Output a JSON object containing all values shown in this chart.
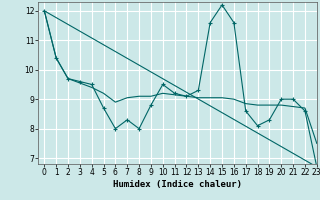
{
  "xlabel": "Humidex (Indice chaleur)",
  "bg_color": "#cce8e8",
  "grid_color": "#ffffff",
  "line_color": "#006666",
  "xlim": [
    -0.5,
    23
  ],
  "ylim": [
    6.8,
    12.3
  ],
  "yticks": [
    7,
    8,
    9,
    10,
    11,
    12
  ],
  "xticks": [
    0,
    1,
    2,
    3,
    4,
    5,
    6,
    7,
    8,
    9,
    10,
    11,
    12,
    13,
    14,
    15,
    16,
    17,
    18,
    19,
    20,
    21,
    22,
    23
  ],
  "series1_x": [
    0,
    1,
    2,
    3,
    4,
    5,
    6,
    7,
    8,
    9,
    10,
    11,
    12,
    13,
    14,
    15,
    16,
    17,
    18,
    19,
    20,
    21,
    22,
    23
  ],
  "series1_y": [
    12.0,
    10.4,
    9.7,
    9.6,
    9.5,
    8.7,
    8.0,
    8.3,
    8.0,
    8.8,
    9.5,
    9.2,
    9.1,
    9.3,
    11.6,
    12.2,
    11.6,
    8.6,
    8.1,
    8.3,
    9.0,
    9.0,
    8.6,
    6.7
  ],
  "series2_x": [
    0,
    1,
    2,
    3,
    4,
    5,
    6,
    7,
    8,
    9,
    10,
    11,
    12,
    13,
    14,
    15,
    16,
    17,
    18,
    19,
    20,
    21,
    22,
    23
  ],
  "series2_y": [
    12.0,
    10.4,
    9.7,
    9.55,
    9.4,
    9.2,
    8.9,
    9.05,
    9.1,
    9.1,
    9.2,
    9.15,
    9.1,
    9.05,
    9.05,
    9.05,
    9.0,
    8.85,
    8.8,
    8.8,
    8.8,
    8.75,
    8.7,
    7.5
  ],
  "series3_x": [
    0,
    23
  ],
  "series3_y": [
    12.0,
    6.7
  ]
}
